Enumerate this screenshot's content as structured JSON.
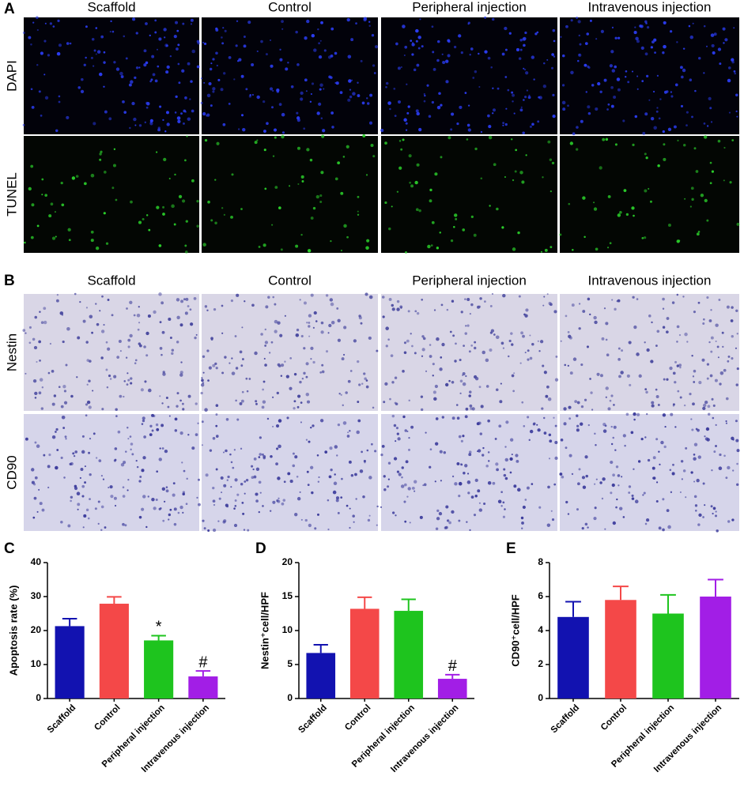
{
  "panel_a": {
    "label": "A",
    "columns": [
      "Scaffold",
      "Control",
      "Peripheral injection",
      "Intravenous injection"
    ],
    "rows": [
      "DAPI",
      "TUNEL"
    ]
  },
  "panel_b": {
    "label": "B",
    "columns": [
      "Scaffold",
      "Control",
      "Peripheral injection",
      "Intravenous injection"
    ],
    "rows": [
      "Nestin",
      "CD90"
    ]
  },
  "chart_data": [
    {
      "label": "C",
      "type": "bar",
      "ylabel": "Apoptosis rate (%)",
      "categories": [
        "Scaffold",
        "Control",
        "Peripheral injection",
        "Intravenous injection"
      ],
      "values": [
        21.3,
        27.9,
        17.1,
        6.5
      ],
      "errors": [
        2.2,
        2.0,
        1.4,
        1.6
      ],
      "colors": [
        "#1212b0",
        "#f44848",
        "#1ec41e",
        "#a21ee6"
      ],
      "annotations": [
        null,
        null,
        "*",
        "#"
      ],
      "ylim": [
        0,
        40
      ],
      "yticks": [
        0,
        10,
        20,
        30,
        40
      ]
    },
    {
      "label": "D",
      "type": "bar",
      "ylabel": "Nestin⁺cell/HPF",
      "categories": [
        "Scaffold",
        "Control",
        "Peripheral injection",
        "Intravenous injection"
      ],
      "values": [
        6.7,
        13.2,
        12.9,
        2.9
      ],
      "errors": [
        1.2,
        1.7,
        1.7,
        0.6
      ],
      "colors": [
        "#1212b0",
        "#f44848",
        "#1ec41e",
        "#a21ee6"
      ],
      "annotations": [
        null,
        null,
        null,
        "#"
      ],
      "ylim": [
        0,
        20
      ],
      "yticks": [
        0,
        5,
        10,
        15,
        20
      ]
    },
    {
      "label": "E",
      "type": "bar",
      "ylabel": "CD90⁺cell/HPF",
      "categories": [
        "Scaffold",
        "Control",
        "Peripheral injection",
        "Intravenous injection"
      ],
      "values": [
        4.8,
        5.8,
        5.0,
        6.0
      ],
      "errors": [
        0.9,
        0.8,
        1.1,
        1.0
      ],
      "colors": [
        "#1212b0",
        "#f44848",
        "#1ec41e",
        "#a21ee6"
      ],
      "annotations": [
        null,
        null,
        null,
        null
      ],
      "ylim": [
        0,
        8
      ],
      "yticks": [
        0,
        2,
        4,
        6,
        8
      ]
    }
  ]
}
